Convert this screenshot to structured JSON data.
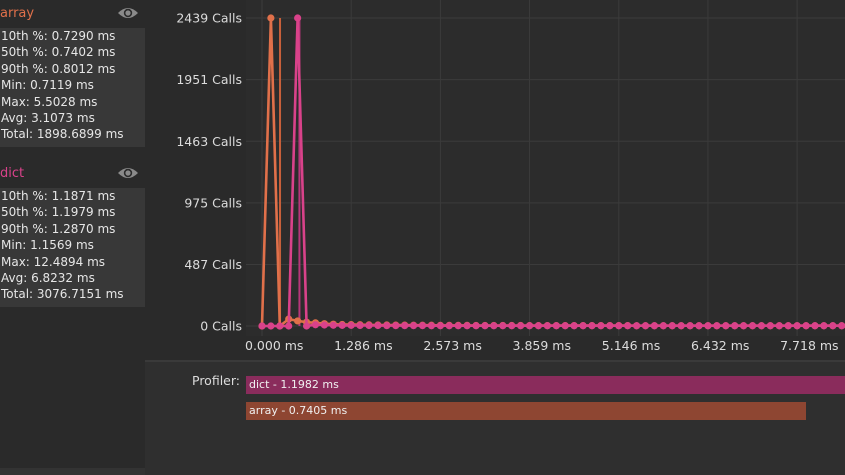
{
  "series_panels": [
    {
      "name": "array",
      "color": "#e0704a",
      "stats": [
        "10th %: 0.7290 ms",
        "50th %: 0.7402 ms",
        "90th %: 0.8012 ms",
        "Min: 0.7119 ms",
        "Max: 5.5028 ms",
        "Avg: 3.1073 ms",
        "Total: 1898.6899 ms"
      ]
    },
    {
      "name": "dict",
      "color": "#d9428a",
      "stats": [
        "10th %: 1.1871 ms",
        "50th %: 1.1979 ms",
        "90th %: 1.2870 ms",
        "Min: 1.1569 ms",
        "Max: 12.4894 ms",
        "Avg: 6.8232 ms",
        "Total: 3076.7151 ms"
      ]
    }
  ],
  "profiler": {
    "label": "Profiler:",
    "bars": [
      {
        "label": "dict - 1.1982 ms",
        "color": "#8a2c5c"
      },
      {
        "label": "array - 0.7405 ms",
        "color": "#8e4632"
      }
    ]
  },
  "chart_data": {
    "type": "line",
    "x_tick_labels": [
      "0.000 ms",
      "1.286 ms",
      "2.573 ms",
      "3.859 ms",
      "5.146 ms",
      "6.432 ms",
      "7.718 ms"
    ],
    "x_ticks": [
      0.0,
      1.286,
      2.573,
      3.859,
      5.146,
      6.432,
      7.718
    ],
    "y_tick_labels": [
      "0 Calls",
      "487 Calls",
      "975 Calls",
      "1463 Calls",
      "1951 Calls",
      "2439 Calls"
    ],
    "y_ticks": [
      0,
      487,
      975,
      1463,
      1951,
      2439
    ],
    "xlim": [
      0.0,
      8.4
    ],
    "ylim": [
      0,
      2439
    ],
    "grid": true,
    "series": [
      {
        "name": "array",
        "color": "#e0704a",
        "x": [
          0.0,
          0.128,
          0.257,
          0.385,
          0.514,
          0.643,
          0.771,
          0.9,
          1.029,
          1.157,
          1.286,
          1.414,
          1.543,
          1.672,
          1.8,
          1.929,
          2.058,
          2.186,
          2.315,
          2.444,
          2.573,
          2.701,
          2.83,
          2.958,
          3.087,
          3.216,
          3.344,
          3.473,
          3.602,
          3.73,
          3.859,
          3.987,
          4.116,
          4.245,
          4.373,
          4.502,
          4.631,
          4.759,
          4.888,
          5.017,
          5.146,
          5.274,
          5.403,
          5.531,
          5.66,
          5.789,
          5.917,
          6.046,
          6.175,
          6.303,
          6.432,
          6.56,
          6.689,
          6.818,
          6.946,
          7.075,
          7.204,
          7.332,
          7.461,
          7.59,
          7.718,
          7.847,
          7.975,
          8.104,
          8.233,
          8.361
        ],
        "y": [
          0,
          2439,
          0,
          55,
          40,
          30,
          25,
          18,
          14,
          12,
          11,
          10,
          9,
          8,
          8,
          7,
          7,
          6,
          6,
          6,
          5,
          5,
          5,
          5,
          4,
          4,
          4,
          4,
          4,
          4,
          3,
          3,
          3,
          3,
          3,
          3,
          3,
          3,
          3,
          3,
          3,
          3,
          2,
          2,
          2,
          2,
          2,
          2,
          2,
          2,
          2,
          2,
          2,
          2,
          2,
          2,
          2,
          2,
          2,
          2,
          2,
          2,
          2,
          2,
          2,
          2
        ]
      },
      {
        "name": "dict",
        "color": "#d9428a",
        "x": [
          0.0,
          0.128,
          0.257,
          0.385,
          0.514,
          0.643,
          0.771,
          0.9,
          1.029,
          1.157,
          1.286,
          1.414,
          1.543,
          1.672,
          1.8,
          1.929,
          2.058,
          2.186,
          2.315,
          2.444,
          2.573,
          2.701,
          2.83,
          2.958,
          3.087,
          3.216,
          3.344,
          3.473,
          3.602,
          3.73,
          3.859,
          3.987,
          4.116,
          4.245,
          4.373,
          4.502,
          4.631,
          4.759,
          4.888,
          5.017,
          5.146,
          5.274,
          5.403,
          5.531,
          5.66,
          5.789,
          5.917,
          6.046,
          6.175,
          6.303,
          6.432,
          6.56,
          6.689,
          6.818,
          6.946,
          7.075,
          7.204,
          7.332,
          7.461,
          7.59,
          7.718,
          7.847,
          7.975,
          8.104,
          8.233,
          8.361
        ],
        "y": [
          0,
          0,
          0,
          0,
          2439,
          0,
          10,
          8,
          6,
          5,
          5,
          4,
          4,
          4,
          3,
          3,
          3,
          3,
          3,
          2,
          2,
          2,
          2,
          2,
          2,
          2,
          2,
          2,
          2,
          2,
          2,
          2,
          2,
          2,
          2,
          2,
          2,
          2,
          2,
          2,
          2,
          2,
          2,
          2,
          2,
          2,
          2,
          2,
          2,
          2,
          2,
          2,
          2,
          2,
          2,
          2,
          2,
          2,
          2,
          2,
          2,
          2,
          2,
          2,
          2,
          2
        ]
      }
    ],
    "markers": [
      {
        "series": "array",
        "x": 0.26,
        "color": "#c8603a"
      },
      {
        "series": "dict",
        "x": 0.54,
        "color": "#b8367a"
      }
    ]
  }
}
